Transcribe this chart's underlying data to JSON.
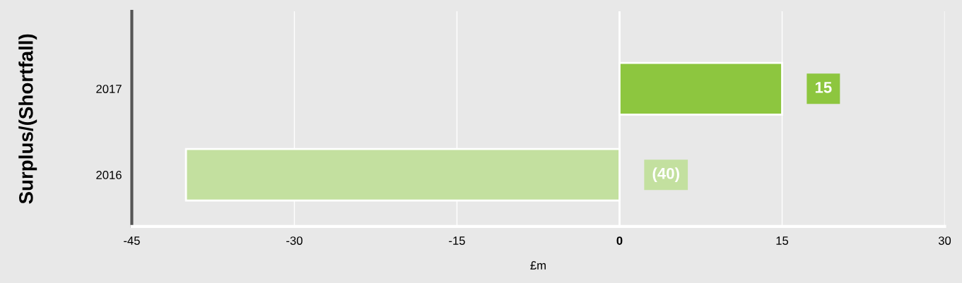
{
  "chart_data": {
    "type": "bar",
    "orientation": "horizontal",
    "categories": [
      "2017",
      "2016"
    ],
    "values": [
      15,
      -40
    ],
    "colors": [
      "#8dc63f",
      "#c3e09f"
    ],
    "value_labels": [
      "15",
      "(40)"
    ],
    "xlabel": "£m",
    "ylabel": "Surplus/(Shortfall)",
    "xlim": [
      -45,
      30
    ],
    "xticks": [
      -45,
      -30,
      -15,
      0,
      15,
      30
    ],
    "grid": "x",
    "legend": false
  }
}
